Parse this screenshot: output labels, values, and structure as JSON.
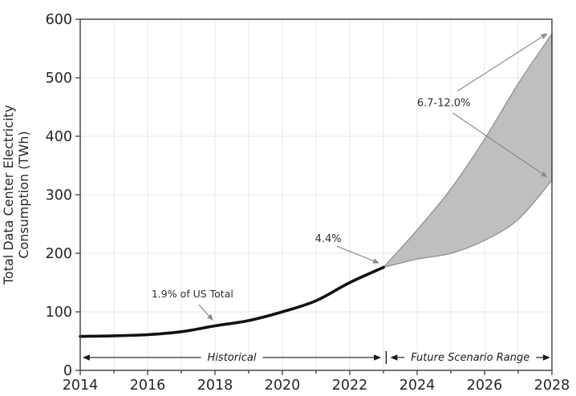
{
  "page": {
    "background": "#ffffff"
  },
  "chart_data": {
    "type": "line",
    "title": "",
    "xlabel": "",
    "ylabel": "Total Data Center Electricity Consumption (TWh)",
    "ylabel_lines": [
      "Total Data Center Electricity",
      "Consumption (TWh)"
    ],
    "xlim": [
      2014,
      2028
    ],
    "ylim": [
      0,
      600
    ],
    "x_major_ticks": [
      2014,
      2016,
      2018,
      2020,
      2022,
      2024,
      2026,
      2028
    ],
    "x_minor_tick_step": 1,
    "y_ticks": [
      0,
      100,
      200,
      300,
      400,
      500,
      600
    ],
    "grid": {
      "show": true,
      "vertical_every_year": true,
      "horizontal_every": 100
    },
    "series": [
      {
        "name": "Historical",
        "x": [
          2014,
          2015,
          2016,
          2017,
          2018,
          2019,
          2020,
          2021,
          2022,
          2023
        ],
        "values": [
          58,
          59,
          61,
          66,
          76,
          85,
          100,
          119,
          150,
          176
        ],
        "color": "#111111",
        "line_width": 3.6
      }
    ],
    "band": {
      "name": "Future Scenario Range",
      "x": [
        2023,
        2024,
        2025,
        2026,
        2027,
        2028
      ],
      "low": [
        176,
        190,
        200,
        222,
        258,
        325
      ],
      "high": [
        176,
        240,
        310,
        395,
        490,
        575
      ],
      "fill": "#bfbfbf",
      "edge": "#8f8f8f"
    },
    "annotations": [
      {
        "text": "1.9% of US Total",
        "x": 2017.33,
        "y": 130,
        "size_class": "anno",
        "arrows": [
          {
            "from": [
              2017.52,
              112
            ],
            "to": [
              2017.95,
              85
            ]
          }
        ]
      },
      {
        "text": "4.4%",
        "x": 2021.36,
        "y": 225,
        "size_class": "anno anno-big",
        "arrows": [
          {
            "from": [
              2021.62,
              212
            ],
            "to": [
              2022.88,
              183
            ]
          }
        ]
      },
      {
        "text": "6.7-12.0%",
        "x": 2024.79,
        "y": 457,
        "size_class": "anno anno-big",
        "arrows": [
          {
            "from": [
              2025.19,
              477
            ],
            "to": [
              2027.87,
              576
            ]
          },
          {
            "from": [
              2025.05,
              440
            ],
            "to": [
              2027.87,
              330
            ]
          }
        ]
      }
    ],
    "range_markers": [
      {
        "text": "Historical",
        "from": 2014.07,
        "to": 2022.93,
        "y": 22
      },
      {
        "text": "Future Scenario Range",
        "from": 2023.2,
        "to": 2027.95,
        "y": 22,
        "bar_at": 2023.08
      }
    ],
    "colors": {
      "grid": "#e7e7e7",
      "spine": "#3d3d3d",
      "tick": "#3d3d3d",
      "tick_label": "#262626",
      "annotation_arrow": "#8a8a8a",
      "range_line": "#1a1a1a"
    }
  }
}
